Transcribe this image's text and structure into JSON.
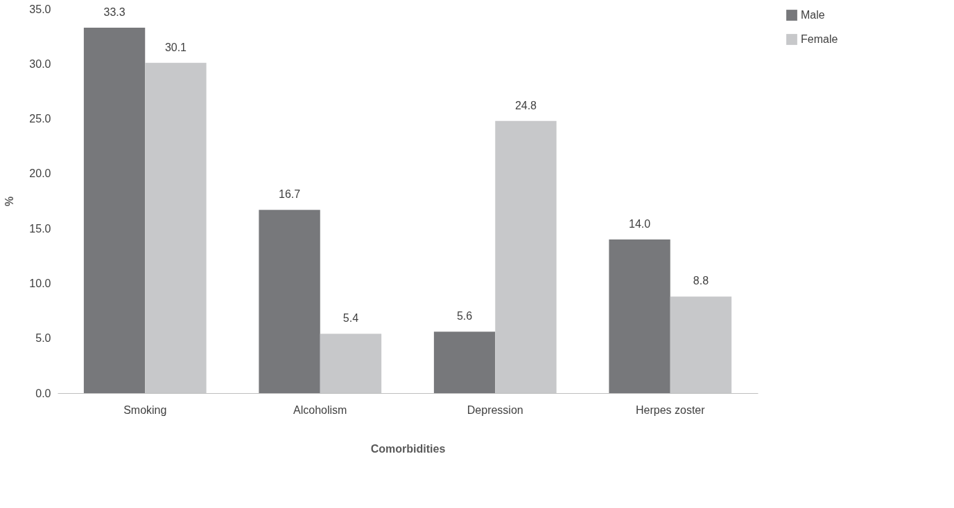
{
  "chart_data": {
    "type": "bar",
    "xlabel": "Comorbidities",
    "ylabel": "%",
    "categories": [
      "Smoking",
      "Alcoholism",
      "Depression",
      "Herpes zoster"
    ],
    "series": [
      {
        "name": "Male",
        "color": "#77787b",
        "values": [
          33.3,
          16.7,
          5.6,
          14.0
        ],
        "value_labels": [
          "33.3",
          "16.7",
          "5.6",
          "14.0"
        ]
      },
      {
        "name": "Female",
        "color": "#c7c8ca",
        "values": [
          30.1,
          5.4,
          24.8,
          8.8
        ],
        "value_labels": [
          "30.1",
          "5.4",
          "24.8",
          "8.8"
        ]
      }
    ],
    "ylim": [
      0,
      35
    ],
    "yticks": [
      {
        "value": 0,
        "label": "0.0"
      },
      {
        "value": 5,
        "label": "5.0"
      },
      {
        "value": 10,
        "label": "10.0"
      },
      {
        "value": 15,
        "label": "15.0"
      },
      {
        "value": 20,
        "label": "20.0"
      },
      {
        "value": 25,
        "label": "25.0"
      },
      {
        "value": 30,
        "label": "30.0"
      },
      {
        "value": 35,
        "label": "35.0"
      }
    ],
    "grid": false,
    "legend": "right"
  }
}
